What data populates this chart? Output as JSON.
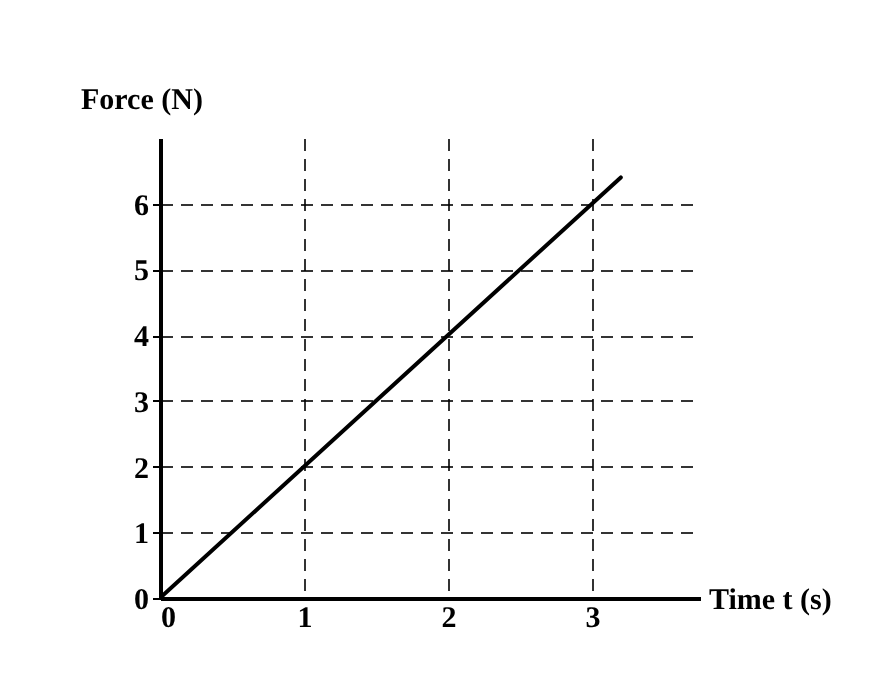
{
  "chart_data": {
    "type": "line",
    "xlabel": "Time t (s)",
    "ylabel": "Force (N)",
    "x": [
      0,
      3.2
    ],
    "series": [
      {
        "color": "#000000",
        "values": [
          0,
          6.4
        ]
      }
    ],
    "xlim": [
      0,
      3.75
    ],
    "ylim": [
      0,
      7
    ],
    "xticks": [
      0,
      1,
      2,
      3
    ],
    "yticks": [
      0,
      1,
      2,
      3,
      4,
      5,
      6
    ],
    "grid": true,
    "line_style": "solid",
    "marker": "none",
    "legend": false
  }
}
